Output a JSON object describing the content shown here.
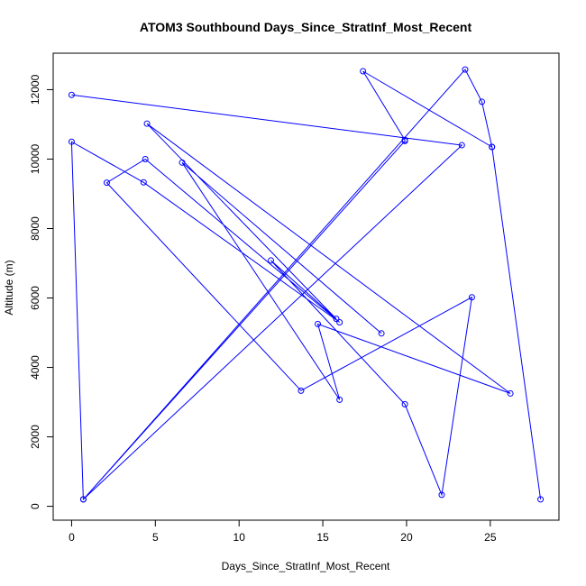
{
  "chart_data": {
    "type": "scatter",
    "title": "ATOM3 Southbound Days_Since_StratInf_Most_Recent",
    "xlabel": "Days_Since_StratInf_Most_Recent",
    "ylabel": "Altitude (m)",
    "xlim": [
      -1.1,
      29.1
    ],
    "ylim": [
      -400,
      13050
    ],
    "x_ticks": [
      0,
      5,
      10,
      15,
      20,
      25
    ],
    "y_ticks": [
      0,
      2000,
      4000,
      6000,
      8000,
      10000,
      12000
    ],
    "series_color": "#0000ff",
    "connected": true,
    "points": [
      {
        "x": 0.0,
        "y": 11850
      },
      {
        "x": 23.3,
        "y": 10400
      },
      {
        "x": 0.7,
        "y": 200
      },
      {
        "x": 23.5,
        "y": 12580
      },
      {
        "x": 24.5,
        "y": 11650
      },
      {
        "x": 25.1,
        "y": 10350
      },
      {
        "x": 28.0,
        "y": 200
      },
      {
        "x": 25.1,
        "y": 10350
      },
      {
        "x": 17.4,
        "y": 12530
      },
      {
        "x": 19.9,
        "y": 10550
      },
      {
        "x": 19.9,
        "y": 10520
      },
      {
        "x": 0.7,
        "y": 200
      },
      {
        "x": 0.0,
        "y": 10500
      },
      {
        "x": 4.3,
        "y": 9330
      },
      {
        "x": 16.0,
        "y": 5300
      },
      {
        "x": 4.4,
        "y": 10000
      },
      {
        "x": 2.1,
        "y": 9320
      },
      {
        "x": 13.7,
        "y": 3330
      },
      {
        "x": 23.9,
        "y": 6020
      },
      {
        "x": 22.1,
        "y": 330
      },
      {
        "x": 19.9,
        "y": 2940
      },
      {
        "x": 11.9,
        "y": 7080
      },
      {
        "x": 15.8,
        "y": 5400
      },
      {
        "x": 4.5,
        "y": 11020
      },
      {
        "x": 26.2,
        "y": 3250
      },
      {
        "x": 14.7,
        "y": 5250
      },
      {
        "x": 16.0,
        "y": 3070
      },
      {
        "x": 6.6,
        "y": 9900
      },
      {
        "x": 18.5,
        "y": 4980
      }
    ]
  }
}
